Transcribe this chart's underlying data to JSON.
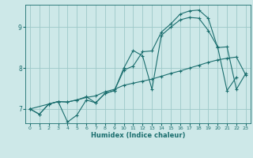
{
  "xlabel": "Humidex (Indice chaleur)",
  "bg_color": "#cde8e8",
  "grid_color": "#9dc8c8",
  "line_color": "#1a6e6e",
  "xlim": [
    -0.5,
    23.5
  ],
  "ylim": [
    6.65,
    9.55
  ],
  "yticks": [
    7,
    8,
    9
  ],
  "xticks": [
    0,
    1,
    2,
    3,
    4,
    5,
    6,
    7,
    8,
    9,
    10,
    11,
    12,
    13,
    14,
    15,
    16,
    17,
    18,
    19,
    20,
    21,
    22,
    23
  ],
  "line1_x": [
    0,
    1,
    2,
    3,
    4,
    5,
    6,
    7,
    8,
    9,
    10,
    11,
    12,
    13,
    14,
    15,
    16,
    17,
    18,
    19,
    20,
    21,
    22,
    23
  ],
  "line1_y": [
    7.0,
    6.87,
    7.12,
    7.18,
    7.17,
    7.22,
    7.28,
    7.32,
    7.42,
    7.48,
    7.58,
    7.63,
    7.68,
    7.73,
    7.8,
    7.87,
    7.93,
    8.0,
    8.07,
    8.14,
    8.2,
    8.24,
    8.27,
    7.83
  ],
  "line2_x": [
    0,
    1,
    2,
    3,
    4,
    5,
    6,
    7,
    8,
    9,
    10,
    11,
    12,
    13,
    14,
    15,
    16,
    17,
    18,
    19,
    20,
    21,
    22
  ],
  "line2_y": [
    7.0,
    6.87,
    7.12,
    7.18,
    6.68,
    6.85,
    7.22,
    7.15,
    7.38,
    7.45,
    8.0,
    8.43,
    8.3,
    7.48,
    8.8,
    9.0,
    9.18,
    9.24,
    9.22,
    8.92,
    8.52,
    7.45,
    7.78
  ],
  "line3_x": [
    0,
    2,
    3,
    4,
    5,
    6,
    7,
    8,
    9,
    10,
    11,
    12,
    13,
    14,
    15,
    16,
    17,
    18,
    19,
    20,
    21,
    22,
    23
  ],
  "line3_y": [
    7.0,
    7.12,
    7.18,
    7.17,
    7.22,
    7.3,
    7.15,
    7.38,
    7.45,
    7.95,
    8.05,
    8.4,
    8.42,
    8.88,
    9.08,
    9.32,
    9.4,
    9.42,
    9.22,
    8.5,
    8.52,
    7.48,
    7.87
  ]
}
